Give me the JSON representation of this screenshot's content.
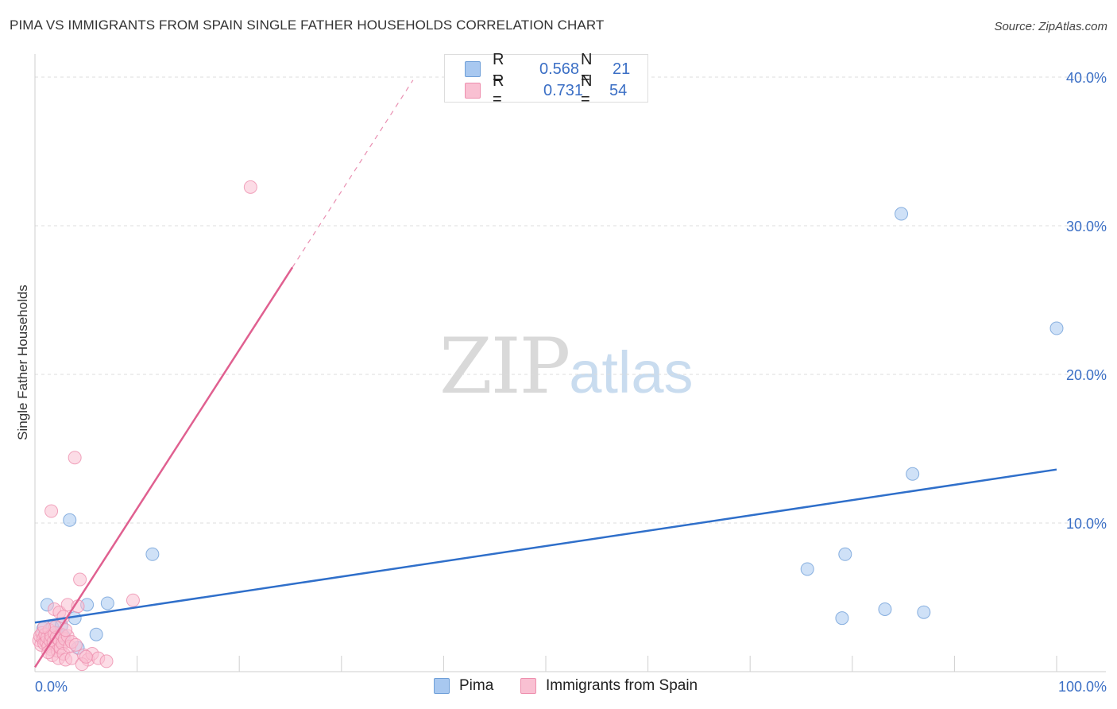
{
  "header": {
    "title": "PIMA VS IMMIGRANTS FROM SPAIN SINGLE FATHER HOUSEHOLDS CORRELATION CHART",
    "source": "Source: ZipAtlas.com"
  },
  "watermark": {
    "zip": "ZIP",
    "atlas": "atlas"
  },
  "legend_top": {
    "rows": [
      {
        "r_label": "R =",
        "r_value": "0.568",
        "n_label": "N =",
        "n_value": "21",
        "color": "#a8c8f0",
        "border": "#6f9fd8"
      },
      {
        "r_label": "R =",
        "r_value": "0.731",
        "n_label": "N =",
        "n_value": "54",
        "color": "#f9c0d2",
        "border": "#ee8fae"
      }
    ]
  },
  "legend_bottom": {
    "items": [
      {
        "label": "Pima",
        "color": "#a8c8f0",
        "border": "#6f9fd8"
      },
      {
        "label": "Immigrants from Spain",
        "color": "#f9c0d2",
        "border": "#ee8fae"
      }
    ]
  },
  "chart_data": {
    "type": "scatter",
    "title": "PIMA VS IMMIGRANTS FROM SPAIN SINGLE FATHER HOUSEHOLDS CORRELATION CHART",
    "xlabel": "",
    "ylabel": "Single Father Households",
    "xlim": [
      0,
      100
    ],
    "ylim": [
      0,
      42
    ],
    "x_tick_labels": [
      "0.0%",
      "100.0%"
    ],
    "y_ticks": [
      10,
      20,
      30,
      40
    ],
    "y_tick_labels": [
      "10.0%",
      "20.0%",
      "30.0%",
      "40.0%"
    ],
    "grid": "horizontal dashed",
    "legend": "top-center",
    "series": [
      {
        "name": "Pima",
        "color": "#6f9fd8",
        "fill": "#a8c8f0",
        "trend_color": "#2f6fca",
        "R": 0.568,
        "N": 21,
        "trend": {
          "x0": 0,
          "y0": 3.3,
          "x1": 100,
          "y1": 13.6,
          "dash_to": 100
        },
        "points": [
          [
            0.8,
            2.9
          ],
          [
            1.2,
            4.5
          ],
          [
            1.7,
            3.0
          ],
          [
            2.2,
            2.6
          ],
          [
            2.6,
            3.1
          ],
          [
            2.8,
            2.4
          ],
          [
            3.4,
            10.2
          ],
          [
            3.9,
            3.6
          ],
          [
            4.2,
            1.6
          ],
          [
            5.1,
            4.5
          ],
          [
            6.0,
            2.5
          ],
          [
            7.1,
            4.6
          ],
          [
            11.5,
            7.9
          ],
          [
            75.6,
            6.9
          ],
          [
            79.0,
            3.6
          ],
          [
            79.3,
            7.9
          ],
          [
            83.2,
            4.2
          ],
          [
            84.8,
            30.8
          ],
          [
            85.9,
            13.3
          ],
          [
            87.0,
            4.0
          ],
          [
            100.0,
            23.1
          ]
        ]
      },
      {
        "name": "Immigrants from Spain",
        "color": "#ee8fae",
        "fill": "#f9c0d2",
        "trend_color": "#e06090",
        "R": 0.731,
        "N": 54,
        "trend": {
          "x0": 0,
          "y0": 0.3,
          "x1": 25.2,
          "y1": 27.2,
          "dash_to": 37.0
        },
        "points": [
          [
            0.4,
            2.1
          ],
          [
            0.5,
            2.4
          ],
          [
            0.6,
            1.8
          ],
          [
            0.7,
            2.6
          ],
          [
            0.8,
            2.2
          ],
          [
            0.9,
            1.9
          ],
          [
            1.0,
            2.5
          ],
          [
            1.1,
            2.0
          ],
          [
            1.2,
            2.3
          ],
          [
            1.3,
            1.7
          ],
          [
            1.4,
            2.8
          ],
          [
            1.5,
            2.1
          ],
          [
            1.6,
            1.5
          ],
          [
            1.6,
            2.4
          ],
          [
            1.7,
            1.1
          ],
          [
            1.8,
            2.0
          ],
          [
            1.9,
            2.6
          ],
          [
            2.0,
            1.8
          ],
          [
            2.1,
            2.3
          ],
          [
            2.2,
            1.4
          ],
          [
            2.3,
            0.9
          ],
          [
            2.4,
            2.1
          ],
          [
            2.5,
            1.6
          ],
          [
            2.6,
            2.5
          ],
          [
            2.7,
            1.9
          ],
          [
            2.8,
            1.2
          ],
          [
            2.9,
            2.2
          ],
          [
            3.0,
            0.8
          ],
          [
            3.2,
            2.4
          ],
          [
            3.4,
            1.7
          ],
          [
            3.6,
            2.0
          ],
          [
            1.6,
            10.8
          ],
          [
            3.9,
            14.4
          ],
          [
            1.9,
            4.2
          ],
          [
            2.4,
            4.0
          ],
          [
            3.2,
            4.5
          ],
          [
            4.0,
            1.8
          ],
          [
            4.4,
            6.2
          ],
          [
            4.8,
            1.1
          ],
          [
            5.2,
            0.8
          ],
          [
            5.6,
            1.2
          ],
          [
            6.2,
            0.9
          ],
          [
            7.0,
            0.7
          ],
          [
            9.6,
            4.8
          ],
          [
            21.1,
            32.6
          ],
          [
            1.3,
            1.3
          ],
          [
            2.0,
            3.0
          ],
          [
            2.8,
            3.7
          ],
          [
            3.6,
            0.9
          ],
          [
            4.6,
            0.5
          ],
          [
            5.0,
            1.0
          ],
          [
            4.2,
            4.4
          ],
          [
            0.9,
            3.0
          ],
          [
            3.0,
            2.8
          ]
        ]
      }
    ]
  }
}
